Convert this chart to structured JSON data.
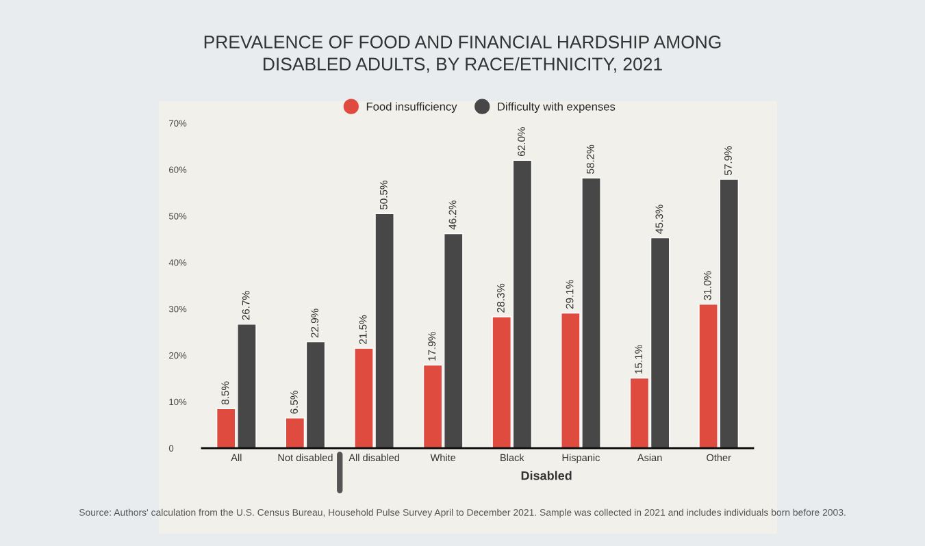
{
  "chart_data": {
    "type": "bar",
    "title": "PREVALENCE OF FOOD AND FINANCIAL HARDSHIP AMONG\nDISABLED ADULTS, BY RACE/ETHNICITY, 2021",
    "categories": [
      "All",
      "Not disabled",
      "All disabled",
      "White",
      "Black",
      "Hispanic",
      "Asian",
      "Other"
    ],
    "series": [
      {
        "name": "Food insufficiency",
        "color": "#e04b40",
        "values": [
          8.5,
          6.5,
          21.5,
          17.9,
          28.3,
          29.1,
          15.1,
          31.0
        ],
        "value_labels": [
          "8.5%",
          "6.5%",
          "21.5%",
          "17.9%",
          "28.3%",
          "29.1%",
          "15.1%",
          "31.0%"
        ]
      },
      {
        "name": "Difficulty with expenses",
        "color": "#474747",
        "values": [
          26.7,
          22.9,
          50.5,
          46.2,
          62.0,
          58.2,
          45.3,
          57.9
        ],
        "value_labels": [
          "26.7%",
          "22.9%",
          "50.5%",
          "46.2%",
          "62.0%",
          "58.2%",
          "45.3%",
          "57.9%"
        ]
      }
    ],
    "ylim": [
      0,
      70
    ],
    "yticks": [
      0,
      {
        "value": 10,
        "label": "10%"
      },
      {
        "value": 20,
        "label": "20%"
      },
      {
        "value": 30,
        "label": "30%"
      },
      {
        "value": 40,
        "label": "40%"
      },
      {
        "value": 50,
        "label": "50%"
      },
      {
        "value": 60,
        "label": "60%"
      },
      {
        "value": 70,
        "label": "70%"
      }
    ],
    "legend": "top",
    "marker": "circle",
    "grid": false,
    "annotations": [
      "Disabled",
      "Source: Authors' calculation from the U.S. Census Bureau, Household Pulse Survey April to December 2021. Sample was collected in 2021 and includes individuals born before 2003."
    ]
  }
}
